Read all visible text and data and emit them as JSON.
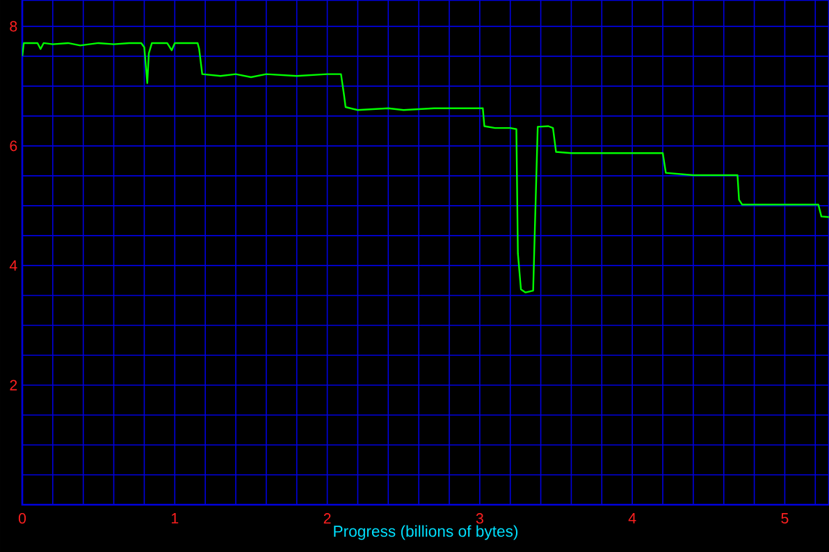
{
  "chart_data": {
    "type": "line",
    "xlabel": "Progress (billions of bytes)",
    "x": [
      0,
      0.01,
      0.1,
      0.12,
      0.14,
      0.2,
      0.3,
      0.38,
      0.5,
      0.6,
      0.7,
      0.78,
      0.8,
      0.82,
      0.83,
      0.85,
      0.95,
      0.98,
      1.0,
      1.1,
      1.15,
      1.16,
      1.18,
      1.3,
      1.4,
      1.5,
      1.6,
      1.8,
      2.0,
      2.09,
      2.11,
      2.12,
      2.2,
      2.4,
      2.5,
      2.7,
      3.0,
      3.02,
      3.03,
      3.1,
      3.2,
      3.24,
      3.25,
      3.27,
      3.3,
      3.35,
      3.36,
      3.38,
      3.45,
      3.48,
      3.5,
      3.6,
      3.8,
      4.0,
      4.2,
      4.22,
      4.4,
      4.6,
      4.69,
      4.7,
      4.72,
      4.9,
      5.1,
      5.22,
      5.24,
      5.29
    ],
    "series": [
      {
        "color": "#00ff00",
        "values": [
          7.5,
          7.72,
          7.72,
          7.62,
          7.72,
          7.7,
          7.72,
          7.68,
          7.72,
          7.7,
          7.72,
          7.72,
          7.65,
          7.05,
          7.55,
          7.72,
          7.72,
          7.6,
          7.72,
          7.72,
          7.72,
          7.62,
          7.2,
          7.17,
          7.2,
          7.15,
          7.2,
          7.17,
          7.2,
          7.2,
          6.85,
          6.65,
          6.6,
          6.63,
          6.6,
          6.63,
          6.63,
          6.63,
          6.33,
          6.3,
          6.3,
          6.28,
          4.2,
          3.6,
          3.55,
          3.58,
          4.5,
          6.32,
          6.33,
          6.3,
          5.9,
          5.88,
          5.88,
          5.88,
          5.88,
          5.55,
          5.51,
          5.51,
          5.51,
          5.1,
          5.02,
          5.02,
          5.02,
          5.02,
          4.82,
          4.81
        ]
      }
    ],
    "xlim": [
      0,
      5.29
    ],
    "ylim": [
      0,
      8.44
    ],
    "xticks": [
      0,
      {
        "value": 0.2,
        "label": null
      },
      {
        "value": 0.4,
        "label": null
      },
      {
        "value": 0.6,
        "label": null
      },
      {
        "value": 0.8,
        "label": null
      },
      1,
      {
        "value": 1.2,
        "label": null
      },
      {
        "value": 1.4,
        "label": null
      },
      {
        "value": 1.6,
        "label": null
      },
      {
        "value": 1.8,
        "label": null
      },
      2,
      {
        "value": 2.2,
        "label": null
      },
      {
        "value": 2.4,
        "label": null
      },
      {
        "value": 2.6,
        "label": null
      },
      {
        "value": 2.8,
        "label": null
      },
      3,
      {
        "value": 3.2,
        "label": null
      },
      {
        "value": 3.4,
        "label": null
      },
      {
        "value": 3.6,
        "label": null
      },
      {
        "value": 3.8,
        "label": null
      },
      4,
      {
        "value": 4.2,
        "label": null
      },
      {
        "value": 4.4,
        "label": null
      },
      {
        "value": 4.6,
        "label": null
      },
      {
        "value": 4.8,
        "label": null
      },
      5,
      {
        "value": 5.2,
        "label": null
      }
    ],
    "yticks": [
      {
        "value": 0.5,
        "label": null
      },
      {
        "value": 1,
        "label": null
      },
      {
        "value": 1.5,
        "label": null
      },
      2,
      {
        "value": 2.5,
        "label": null
      },
      {
        "value": 3,
        "label": null
      },
      {
        "value": 3.5,
        "label": null
      },
      4,
      {
        "value": 4.5,
        "label": null
      },
      {
        "value": 5,
        "label": null
      },
      {
        "value": 5.5,
        "label": null
      },
      6,
      {
        "value": 6.5,
        "label": null
      },
      {
        "value": 7,
        "label": null
      },
      {
        "value": 7.5,
        "label": null
      },
      8
    ],
    "grid": true,
    "marker": "none",
    "line_style": "solid"
  }
}
